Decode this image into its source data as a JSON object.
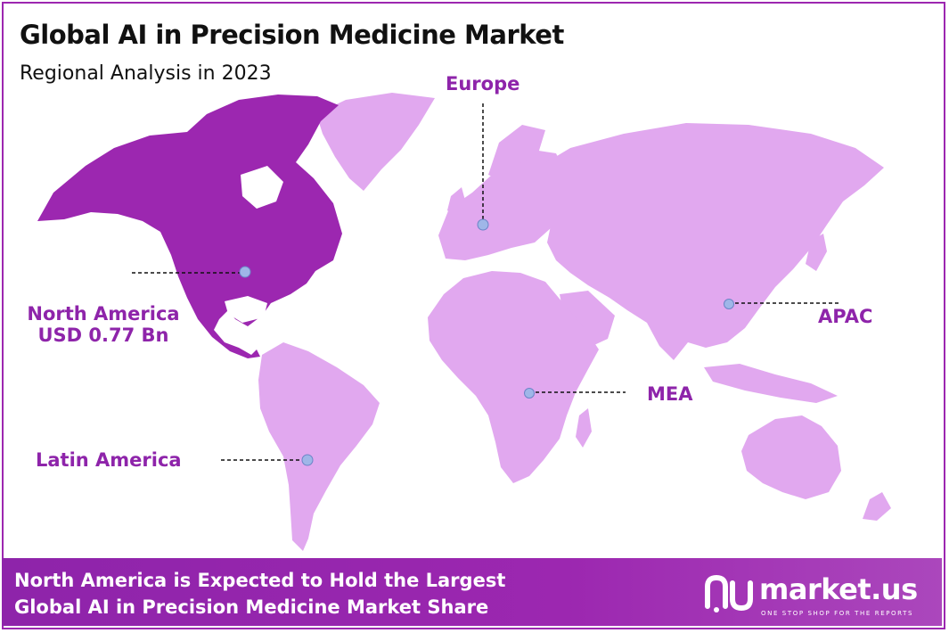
{
  "header": {
    "title": "Global AI in Precision Medicine Market",
    "subtitle": "Regional Analysis in 2023"
  },
  "regions": {
    "europe": {
      "label": "Europe"
    },
    "north_america": {
      "label": "North America",
      "value": "USD 0.77 Bn"
    },
    "apac": {
      "label": "APAC"
    },
    "mea": {
      "label": "MEA"
    },
    "latin_america": {
      "label": "Latin America"
    }
  },
  "colors": {
    "highlight_region": "#9c27b0",
    "other_regions": "#e1a8ef",
    "accent_text": "#8e24aa",
    "marker": "#9fb6e8"
  },
  "banner": {
    "line1": "North America is Expected to Hold the Largest",
    "line2": "Global AI in Precision Medicine Market Share"
  },
  "brand": {
    "name": "market.us",
    "tagline": "ONE STOP SHOP FOR THE REPORTS"
  }
}
